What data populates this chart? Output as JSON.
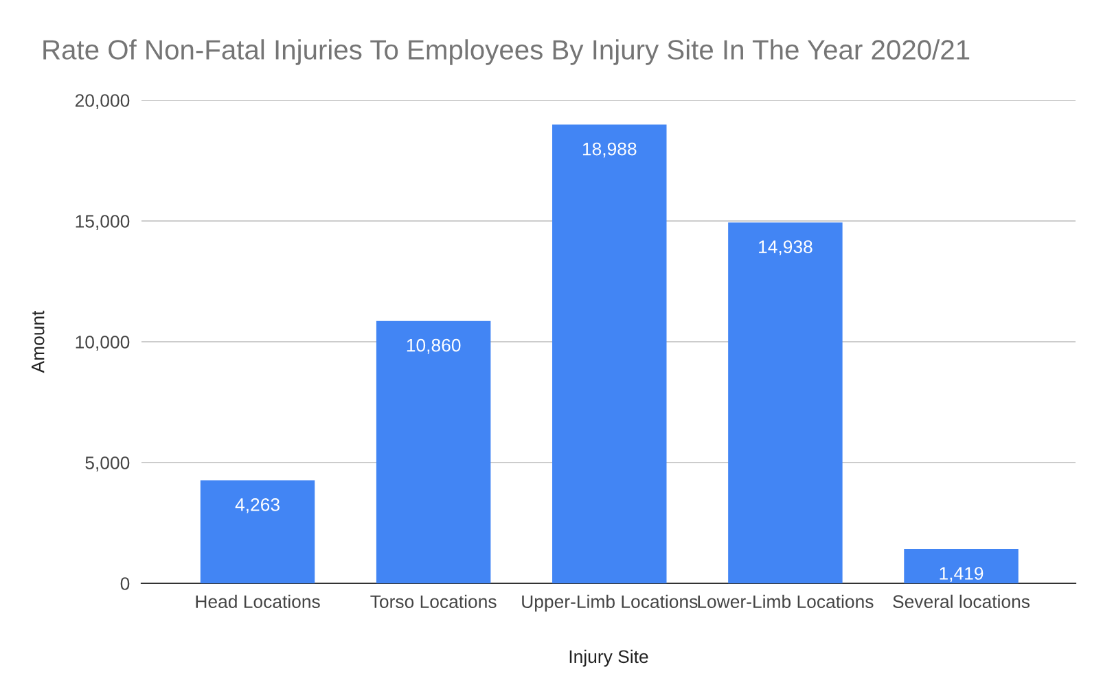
{
  "chart_data": {
    "type": "bar",
    "title": "Rate Of Non-Fatal Injuries To Employees By Injury Site In The Year 2020/21",
    "xlabel": "Injury Site",
    "ylabel": "Amount",
    "categories": [
      "Head Locations",
      "Torso Locations",
      "Upper-Limb Locations",
      "Lower-Limb Locations",
      "Several locations"
    ],
    "values": [
      4263,
      10860,
      18988,
      14938,
      1419
    ],
    "value_labels": [
      "4,263",
      "10,860",
      "18,988",
      "14,938",
      "1,419"
    ],
    "color": "#4285f4",
    "ylim": [
      0,
      20000
    ],
    "yticks": [
      {
        "value": 0,
        "label": "0"
      },
      {
        "value": 5000,
        "label": "5,000"
      },
      {
        "value": 10000,
        "label": "10,000"
      },
      {
        "value": 15000,
        "label": "15,000"
      },
      {
        "value": 20000,
        "label": "20,000"
      }
    ],
    "grid": "y",
    "legend": false
  }
}
